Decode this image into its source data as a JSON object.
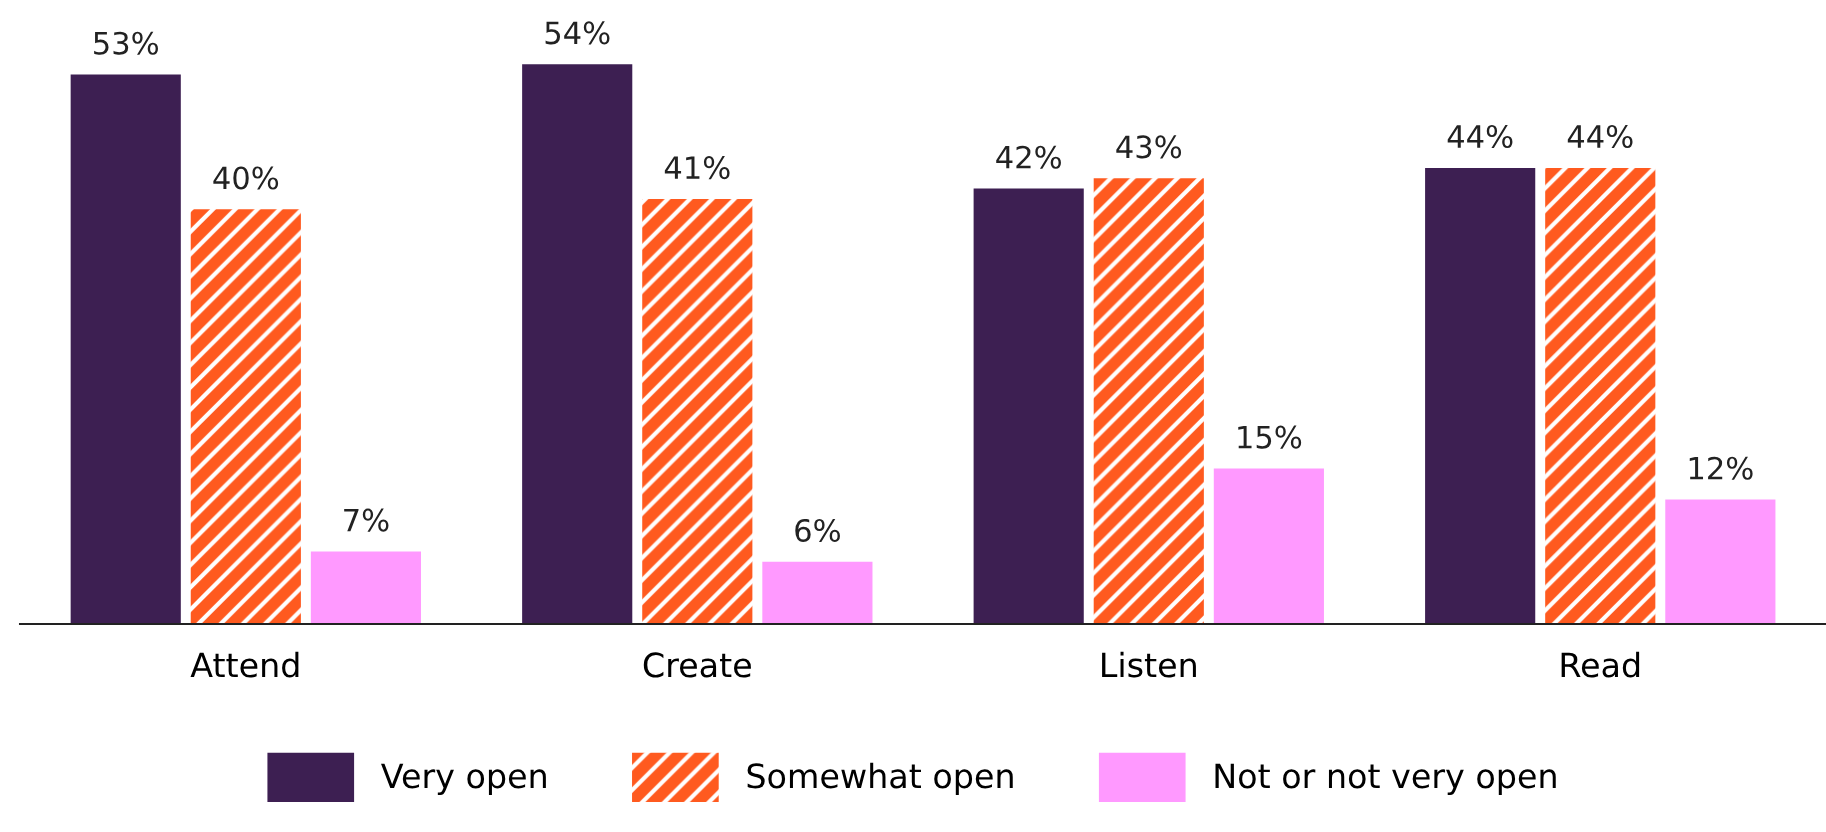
{
  "chart_data": {
    "type": "bar",
    "categories": [
      "Attend",
      "Create",
      "Listen",
      "Read"
    ],
    "series": [
      {
        "name": "Very open",
        "color": "#3d1f52",
        "values": [
          53,
          54,
          42,
          44
        ],
        "value_labels": [
          "53%",
          "54%",
          "42%",
          "44%"
        ]
      },
      {
        "name": "Somewhat open",
        "color": "#ff5a1f",
        "values": [
          40,
          41,
          43,
          44
        ],
        "value_labels": [
          "40%",
          "41%",
          "43%",
          "44%"
        ]
      },
      {
        "name": "Not or not very open",
        "color": "#ff99ff",
        "values": [
          7,
          6,
          15,
          12
        ],
        "value_labels": [
          "7%",
          "6%",
          "15%",
          "12%"
        ]
      }
    ],
    "legend": "bottom"
  }
}
